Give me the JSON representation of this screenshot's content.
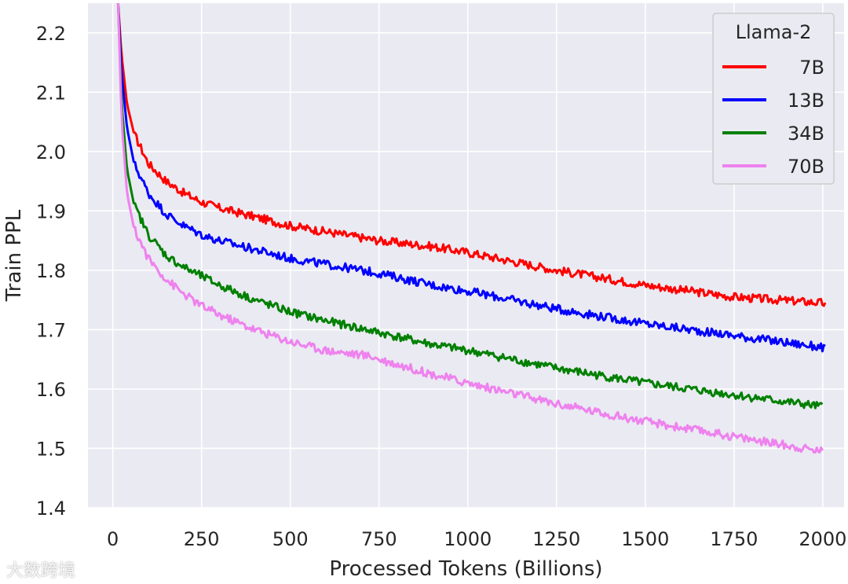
{
  "watermark": "大数跨境",
  "chart_data": {
    "type": "line",
    "title": "",
    "xlabel": "Processed Tokens (Billions)",
    "ylabel": "Train PPL",
    "xlim": [
      -70,
      2060
    ],
    "ylim": [
      1.4,
      2.25
    ],
    "xticks": [
      0,
      250,
      500,
      750,
      1000,
      1250,
      1500,
      1750,
      2000
    ],
    "yticks": [
      1.4,
      1.5,
      1.6,
      1.7,
      1.8,
      1.9,
      2.0,
      2.1,
      2.2
    ],
    "grid": true,
    "legend": {
      "title": "Llama-2",
      "placement": "top-right"
    },
    "series": [
      {
        "name": "7B",
        "color": "#ff0000",
        "x": [
          15,
          25,
          40,
          60,
          100,
          150,
          200,
          250,
          300,
          400,
          500,
          600,
          750,
          900,
          1000,
          1250,
          1500,
          1750,
          2000,
          2010
        ],
        "y": [
          2.25,
          2.16,
          2.08,
          2.03,
          1.98,
          1.95,
          1.93,
          1.915,
          1.905,
          1.89,
          1.875,
          1.865,
          1.85,
          1.84,
          1.83,
          1.8,
          1.775,
          1.755,
          1.745,
          1.74
        ]
      },
      {
        "name": "13B",
        "color": "#0000ff",
        "x": [
          15,
          25,
          40,
          60,
          100,
          150,
          200,
          250,
          300,
          400,
          500,
          600,
          750,
          900,
          1000,
          1250,
          1500,
          1750,
          2000,
          2010
        ],
        "y": [
          2.25,
          2.13,
          2.04,
          1.98,
          1.93,
          1.895,
          1.875,
          1.86,
          1.85,
          1.835,
          1.82,
          1.81,
          1.795,
          1.775,
          1.765,
          1.735,
          1.71,
          1.69,
          1.67,
          1.665
        ]
      },
      {
        "name": "34B",
        "color": "#008000",
        "x": [
          15,
          25,
          40,
          60,
          100,
          150,
          200,
          250,
          300,
          400,
          500,
          600,
          750,
          900,
          1000,
          1250,
          1500,
          1750,
          2000
        ],
        "y": [
          2.25,
          2.08,
          1.97,
          1.91,
          1.86,
          1.825,
          1.805,
          1.79,
          1.775,
          1.75,
          1.73,
          1.715,
          1.695,
          1.675,
          1.665,
          1.635,
          1.61,
          1.59,
          1.57
        ]
      },
      {
        "name": "70B",
        "color": "#ee82ee",
        "x": [
          15,
          25,
          40,
          60,
          100,
          150,
          200,
          250,
          300,
          400,
          500,
          600,
          730,
          750,
          900,
          1000,
          1250,
          1500,
          1750,
          2000
        ],
        "y": [
          2.25,
          2.05,
          1.93,
          1.87,
          1.82,
          1.785,
          1.76,
          1.74,
          1.725,
          1.7,
          1.68,
          1.665,
          1.655,
          1.65,
          1.625,
          1.61,
          1.575,
          1.545,
          1.52,
          1.495
        ]
      }
    ]
  }
}
